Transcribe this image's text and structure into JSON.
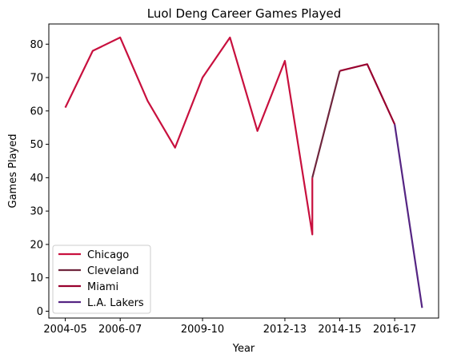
{
  "chart_data": {
    "type": "line",
    "title": "Luol Deng Career Games Played",
    "xlabel": "Year",
    "ylabel": "Games Played",
    "x_ticks": [
      "2004-05",
      "2006-07",
      "2009-10",
      "2012-13",
      "2014-15",
      "2016-17"
    ],
    "y_ticks": [
      0,
      10,
      20,
      30,
      40,
      50,
      60,
      70,
      80
    ],
    "ylim": [
      -2.05,
      86.05
    ],
    "grid": false,
    "legend_position": "lower-left",
    "series": [
      {
        "name": "Chicago",
        "color": "#C8103E",
        "points": [
          {
            "x": "2004-05",
            "y": 61
          },
          {
            "x": "2005-06",
            "y": 78
          },
          {
            "x": "2006-07",
            "y": 82
          },
          {
            "x": "2007-08",
            "y": 63
          },
          {
            "x": "2008-09",
            "y": 49
          },
          {
            "x": "2009-10",
            "y": 70
          },
          {
            "x": "2010-11",
            "y": 82
          },
          {
            "x": "2011-12",
            "y": 54
          },
          {
            "x": "2012-13",
            "y": 75
          },
          {
            "x": "2013-14",
            "y": 23
          },
          {
            "x": "2013-14",
            "y": 40
          }
        ]
      },
      {
        "name": "Cleveland",
        "color": "#6F263D",
        "points": [
          {
            "x": "2013-14",
            "y": 40
          },
          {
            "x": "2014-15",
            "y": 72
          }
        ]
      },
      {
        "name": "Miami",
        "color": "#98002E",
        "points": [
          {
            "x": "2014-15",
            "y": 72
          },
          {
            "x": "2015-16",
            "y": 74
          },
          {
            "x": "2016-17",
            "y": 56
          }
        ]
      },
      {
        "name": "L.A. Lakers",
        "color": "#552583",
        "points": [
          {
            "x": "2016-17",
            "y": 56
          },
          {
            "x": "2017-18",
            "y": 1
          }
        ]
      }
    ]
  }
}
